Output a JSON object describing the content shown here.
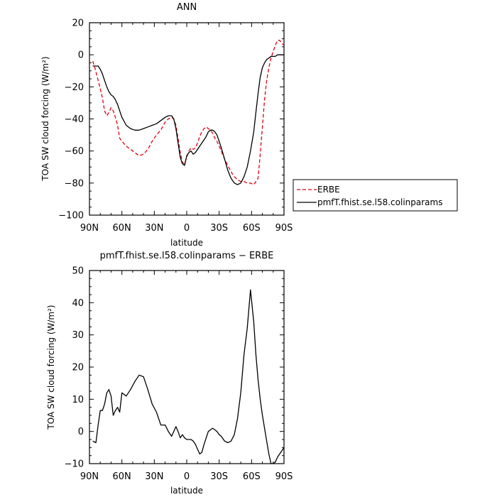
{
  "chart_data": [
    {
      "type": "line",
      "title": "ANN",
      "xlabel": "latitude",
      "ylabel": "TOA SW cloud forcing (W/m²)",
      "xlim": [
        90,
        -90
      ],
      "ylim": [
        -100,
        20
      ],
      "x_ticks": [
        90,
        60,
        30,
        0,
        -30,
        -60,
        -90
      ],
      "x_tick_labels": [
        "90N",
        "60N",
        "30N",
        "0",
        "30S",
        "60S",
        "90S"
      ],
      "y_ticks": [
        -100,
        -80,
        -60,
        -40,
        -20,
        0,
        20
      ],
      "y_tick_labels": [
        "−100",
        "−80",
        "−60",
        "−40",
        "−20",
        "0",
        "20"
      ],
      "legend_position": "outside-right",
      "series": [
        {
          "name": "ERBE",
          "color": "#e0000f",
          "dash": "dashed",
          "x": [
            87,
            85,
            82,
            80,
            78,
            76,
            74,
            72,
            70,
            68,
            66,
            64,
            62,
            60,
            56,
            52,
            48,
            44,
            40,
            36,
            32,
            28,
            24,
            20,
            17,
            14,
            12,
            10,
            8,
            6,
            4,
            2,
            0,
            -2,
            -4,
            -6,
            -8,
            -10,
            -12,
            -14,
            -16,
            -18,
            -20,
            -22,
            -24,
            -26,
            -28,
            -30,
            -32,
            -35,
            -38,
            -41,
            -44,
            -47,
            -50,
            -53,
            -56,
            -59,
            -62,
            -64,
            -66,
            -68,
            -70,
            -72,
            -74,
            -76,
            -78,
            -80,
            -82,
            -84,
            -86,
            -88,
            -90
          ],
          "y": [
            -4,
            -8,
            -16,
            -21,
            -27,
            -35,
            -38,
            -36,
            -33,
            -35,
            -39,
            -44,
            -52,
            -54,
            -57,
            -59,
            -61,
            -63,
            -62,
            -59,
            -54,
            -50,
            -47,
            -42,
            -40,
            -39,
            -40,
            -44,
            -52,
            -61,
            -67,
            -68,
            -64,
            -60,
            -58,
            -59,
            -58,
            -55,
            -51,
            -48,
            -46,
            -45,
            -46,
            -47,
            -49,
            -52,
            -54,
            -57,
            -60,
            -65,
            -69,
            -73,
            -76,
            -78,
            -79,
            -79,
            -80,
            -80,
            -81,
            -79,
            -77,
            -62,
            -45,
            -28,
            -16,
            -8,
            -2,
            2,
            6,
            9,
            9,
            7,
            6
          ]
        },
        {
          "name": "pmfT.fhist.se.l58.colinparams",
          "color": "#000000",
          "dash": "solid",
          "x": [
            87,
            84,
            82,
            80,
            78,
            76,
            74,
            72,
            70,
            68,
            66,
            64,
            62,
            60,
            56,
            52,
            48,
            44,
            40,
            36,
            32,
            28,
            24,
            20,
            17,
            14,
            12,
            10,
            8,
            6,
            4,
            2,
            0,
            -2,
            -4,
            -6,
            -8,
            -10,
            -12,
            -14,
            -16,
            -18,
            -20,
            -22,
            -24,
            -26,
            -28,
            -30,
            -32,
            -35,
            -38,
            -41,
            -44,
            -47,
            -50,
            -53,
            -56,
            -59,
            -62,
            -64,
            -66,
            -68,
            -70,
            -72,
            -74,
            -76,
            -78,
            -80,
            -82,
            -84,
            -86,
            -88,
            -90
          ],
          "y": [
            -7,
            -7,
            -7,
            -9,
            -12,
            -16,
            -20,
            -23,
            -25,
            -26,
            -28,
            -31,
            -35,
            -39,
            -44,
            -46,
            -47,
            -47,
            -46,
            -45,
            -44,
            -43,
            -41,
            -39,
            -38,
            -38,
            -40,
            -46,
            -55,
            -64,
            -68,
            -69,
            -63,
            -61,
            -60,
            -62,
            -61,
            -59,
            -57,
            -55,
            -53,
            -51,
            -48,
            -47,
            -47,
            -48,
            -50,
            -54,
            -58,
            -65,
            -72,
            -77,
            -80,
            -81,
            -80,
            -76,
            -70,
            -60,
            -48,
            -36,
            -24,
            -14,
            -8,
            -5,
            -3,
            -2,
            -1,
            -1,
            -1,
            0,
            0,
            0,
            0
          ]
        }
      ]
    },
    {
      "type": "line",
      "title": "pmfT.fhist.se.l58.colinparams − ERBE",
      "xlabel": "latitude",
      "ylabel": "TOA SW cloud forcing (W/m²)",
      "xlim": [
        90,
        -90
      ],
      "ylim": [
        -10,
        50
      ],
      "x_ticks": [
        90,
        60,
        30,
        0,
        -30,
        -60,
        -90
      ],
      "x_tick_labels": [
        "90N",
        "60N",
        "30N",
        "0",
        "30S",
        "60S",
        "90S"
      ],
      "y_ticks": [
        -10,
        0,
        10,
        20,
        30,
        40,
        50
      ],
      "y_tick_labels": [
        "−10",
        "0",
        "10",
        "20",
        "30",
        "40",
        "50"
      ],
      "series": [
        {
          "color": "#000000",
          "dash": "solid",
          "x": [
            87,
            84,
            82,
            80,
            78,
            76,
            74,
            72,
            70,
            68,
            66,
            64,
            62,
            60,
            56,
            52,
            48,
            44,
            40,
            36,
            32,
            28,
            24,
            20,
            17,
            14,
            12,
            10,
            8,
            6,
            4,
            2,
            0,
            -2,
            -4,
            -6,
            -8,
            -10,
            -12,
            -14,
            -16,
            -18,
            -20,
            -22,
            -24,
            -26,
            -28,
            -30,
            -32,
            -35,
            -38,
            -41,
            -44,
            -47,
            -50,
            -53,
            -56,
            -59,
            -62,
            -64,
            -66,
            -68,
            -70,
            -72,
            -74,
            -76,
            -78,
            -80,
            -82,
            -84,
            -86,
            -88,
            -90
          ],
          "y": [
            -3,
            -3.5,
            2,
            6.5,
            6.5,
            8.5,
            12,
            13,
            11,
            5,
            6.5,
            7.5,
            6,
            12,
            11,
            13,
            15.5,
            17.5,
            17,
            13,
            8.5,
            6,
            2,
            2,
            0,
            -1.5,
            0,
            1.5,
            0,
            -2,
            -1,
            -2,
            -2.5,
            -2.5,
            -2.5,
            -3,
            -4,
            -5.5,
            -7,
            -6.5,
            -4,
            -2,
            0,
            0.5,
            1,
            0.5,
            0,
            -1,
            -1.5,
            -3,
            -3.5,
            -3,
            -1,
            4,
            12,
            24,
            32,
            44,
            34,
            24,
            16,
            10,
            5,
            1,
            -3,
            -7,
            -10,
            -10,
            -9.5,
            -8,
            -7,
            -6,
            -5
          ]
        }
      ]
    }
  ]
}
